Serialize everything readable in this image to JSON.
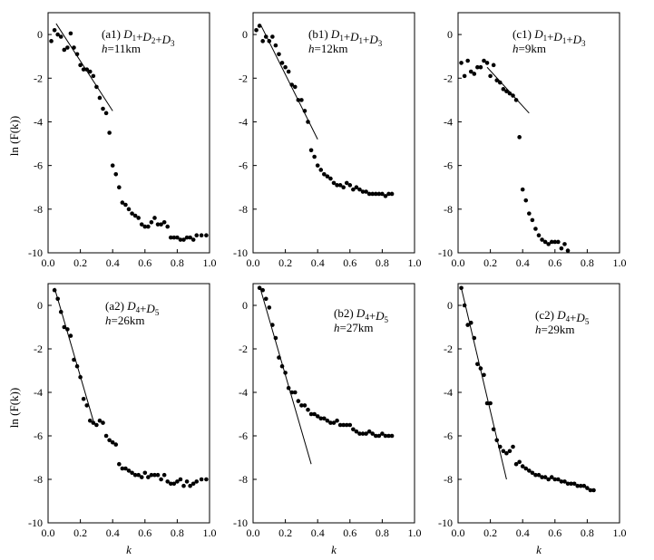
{
  "figure": {
    "ylabel": "ln (F(k))",
    "xlabel": "k"
  },
  "chart_data": [
    {
      "id": "a1",
      "type": "scatter",
      "label": "(a1) D1+D2+D3",
      "h": "h=11km",
      "xlim": [
        0,
        1
      ],
      "ylim": [
        -10,
        1
      ],
      "xticks": [
        "0.0",
        "0.2",
        "0.4",
        "0.6",
        "0.8",
        "1.0"
      ],
      "yticks": [
        "0",
        "-2",
        "-4",
        "-6",
        "-8",
        "-10"
      ],
      "show_xlabel": false,
      "points": [
        [
          0.02,
          -0.3
        ],
        [
          0.04,
          0.2
        ],
        [
          0.06,
          0.0
        ],
        [
          0.08,
          -0.1
        ],
        [
          0.1,
          -0.7
        ],
        [
          0.12,
          -0.6
        ],
        [
          0.14,
          0.05
        ],
        [
          0.16,
          -0.6
        ],
        [
          0.18,
          -0.9
        ],
        [
          0.2,
          -1.4
        ],
        [
          0.22,
          -1.6
        ],
        [
          0.24,
          -1.6
        ],
        [
          0.26,
          -1.7
        ],
        [
          0.28,
          -1.9
        ],
        [
          0.3,
          -2.4
        ],
        [
          0.32,
          -2.9
        ],
        [
          0.34,
          -3.4
        ],
        [
          0.36,
          -3.6
        ],
        [
          0.38,
          -4.5
        ],
        [
          0.4,
          -6.0
        ],
        [
          0.42,
          -6.4
        ],
        [
          0.44,
          -7.0
        ],
        [
          0.46,
          -7.7
        ],
        [
          0.48,
          -7.8
        ],
        [
          0.5,
          -8.0
        ],
        [
          0.52,
          -8.2
        ],
        [
          0.54,
          -8.3
        ],
        [
          0.56,
          -8.4
        ],
        [
          0.58,
          -8.7
        ],
        [
          0.6,
          -8.8
        ],
        [
          0.62,
          -8.8
        ],
        [
          0.64,
          -8.6
        ],
        [
          0.66,
          -8.4
        ],
        [
          0.68,
          -8.7
        ],
        [
          0.7,
          -8.7
        ],
        [
          0.72,
          -8.6
        ],
        [
          0.74,
          -8.8
        ],
        [
          0.76,
          -9.3
        ],
        [
          0.78,
          -9.3
        ],
        [
          0.8,
          -9.3
        ],
        [
          0.82,
          -9.4
        ],
        [
          0.84,
          -9.4
        ],
        [
          0.86,
          -9.3
        ],
        [
          0.88,
          -9.3
        ],
        [
          0.9,
          -9.4
        ],
        [
          0.92,
          -9.2
        ],
        [
          0.95,
          -9.2
        ],
        [
          0.98,
          -9.2
        ]
      ],
      "fit": [
        [
          0.05,
          0.5
        ],
        [
          0.4,
          -3.5
        ]
      ]
    },
    {
      "id": "b1",
      "type": "scatter",
      "label": "(b1) D1+D1+D3",
      "h": "h=12km",
      "xlim": [
        0,
        1
      ],
      "ylim": [
        -10,
        1
      ],
      "xticks": [
        "0.0",
        "0.2",
        "0.4",
        "0.6",
        "0.8",
        "1.0"
      ],
      "yticks": [
        "0",
        "-2",
        "-4",
        "-6",
        "-8",
        "-10"
      ],
      "show_xlabel": false,
      "points": [
        [
          0.02,
          0.2
        ],
        [
          0.04,
          0.4
        ],
        [
          0.06,
          -0.3
        ],
        [
          0.08,
          -0.1
        ],
        [
          0.1,
          -0.3
        ],
        [
          0.12,
          -0.1
        ],
        [
          0.14,
          -0.5
        ],
        [
          0.16,
          -0.9
        ],
        [
          0.18,
          -1.3
        ],
        [
          0.2,
          -1.5
        ],
        [
          0.22,
          -1.7
        ],
        [
          0.24,
          -2.3
        ],
        [
          0.26,
          -2.4
        ],
        [
          0.28,
          -3.0
        ],
        [
          0.3,
          -3.0
        ],
        [
          0.32,
          -3.5
        ],
        [
          0.34,
          -4.0
        ],
        [
          0.36,
          -5.3
        ],
        [
          0.38,
          -5.6
        ],
        [
          0.4,
          -6.0
        ],
        [
          0.42,
          -6.2
        ],
        [
          0.44,
          -6.4
        ],
        [
          0.46,
          -6.5
        ],
        [
          0.48,
          -6.6
        ],
        [
          0.5,
          -6.8
        ],
        [
          0.52,
          -6.9
        ],
        [
          0.54,
          -6.9
        ],
        [
          0.56,
          -7.0
        ],
        [
          0.58,
          -6.8
        ],
        [
          0.6,
          -6.9
        ],
        [
          0.62,
          -7.1
        ],
        [
          0.64,
          -7.0
        ],
        [
          0.66,
          -7.1
        ],
        [
          0.68,
          -7.2
        ],
        [
          0.7,
          -7.2
        ],
        [
          0.72,
          -7.3
        ],
        [
          0.74,
          -7.3
        ],
        [
          0.76,
          -7.3
        ],
        [
          0.78,
          -7.3
        ],
        [
          0.8,
          -7.3
        ],
        [
          0.82,
          -7.4
        ],
        [
          0.84,
          -7.3
        ],
        [
          0.86,
          -7.3
        ]
      ],
      "fit": [
        [
          0.05,
          0.4
        ],
        [
          0.4,
          -4.8
        ]
      ]
    },
    {
      "id": "c1",
      "type": "scatter",
      "label": "(c1) D1+D1+D3",
      "h": "h=9km",
      "xlim": [
        0,
        1
      ],
      "ylim": [
        -10,
        1
      ],
      "xticks": [
        "0.0",
        "0.2",
        "0.4",
        "0.6",
        "0.8",
        "1.0"
      ],
      "yticks": [
        "0",
        "-2",
        "-4",
        "-6",
        "-8",
        "-10"
      ],
      "show_xlabel": false,
      "points": [
        [
          0.02,
          -1.3
        ],
        [
          0.04,
          -1.9
        ],
        [
          0.06,
          -1.2
        ],
        [
          0.08,
          -1.7
        ],
        [
          0.1,
          -1.8
        ],
        [
          0.12,
          -1.5
        ],
        [
          0.14,
          -1.5
        ],
        [
          0.16,
          -1.2
        ],
        [
          0.18,
          -1.3
        ],
        [
          0.2,
          -1.9
        ],
        [
          0.22,
          -1.4
        ],
        [
          0.24,
          -2.1
        ],
        [
          0.26,
          -2.2
        ],
        [
          0.28,
          -2.5
        ],
        [
          0.3,
          -2.6
        ],
        [
          0.32,
          -2.7
        ],
        [
          0.34,
          -2.8
        ],
        [
          0.36,
          -3.0
        ],
        [
          0.38,
          -4.7
        ],
        [
          0.4,
          -7.1
        ],
        [
          0.42,
          -7.6
        ],
        [
          0.44,
          -8.2
        ],
        [
          0.46,
          -8.5
        ],
        [
          0.48,
          -8.9
        ],
        [
          0.5,
          -9.2
        ],
        [
          0.52,
          -9.4
        ],
        [
          0.54,
          -9.5
        ],
        [
          0.56,
          -9.6
        ],
        [
          0.58,
          -9.5
        ],
        [
          0.6,
          -9.5
        ],
        [
          0.62,
          -9.5
        ],
        [
          0.64,
          -9.8
        ],
        [
          0.66,
          -9.6
        ],
        [
          0.68,
          -9.9
        ]
      ],
      "fit": [
        [
          0.18,
          -1.5
        ],
        [
          0.44,
          -3.6
        ]
      ]
    },
    {
      "id": "a2",
      "type": "scatter",
      "label": "(a2) D4+D5",
      "h": "h=26km",
      "xlim": [
        0,
        1
      ],
      "ylim": [
        -10,
        1
      ],
      "xticks": [
        "0.0",
        "0.2",
        "0.4",
        "0.6",
        "0.8",
        "1.0"
      ],
      "yticks": [
        "0",
        "-2",
        "-4",
        "-6",
        "-8",
        "-10"
      ],
      "show_xlabel": true,
      "points": [
        [
          0.04,
          0.7
        ],
        [
          0.06,
          0.3
        ],
        [
          0.08,
          -0.3
        ],
        [
          0.1,
          -1.0
        ],
        [
          0.12,
          -1.1
        ],
        [
          0.14,
          -1.4
        ],
        [
          0.16,
          -2.5
        ],
        [
          0.18,
          -2.8
        ],
        [
          0.2,
          -3.3
        ],
        [
          0.22,
          -4.3
        ],
        [
          0.24,
          -4.6
        ],
        [
          0.26,
          -5.3
        ],
        [
          0.28,
          -5.4
        ],
        [
          0.3,
          -5.5
        ],
        [
          0.32,
          -5.3
        ],
        [
          0.34,
          -5.4
        ],
        [
          0.36,
          -6.0
        ],
        [
          0.38,
          -6.2
        ],
        [
          0.4,
          -6.3
        ],
        [
          0.42,
          -6.4
        ],
        [
          0.44,
          -7.3
        ],
        [
          0.46,
          -7.5
        ],
        [
          0.48,
          -7.5
        ],
        [
          0.5,
          -7.6
        ],
        [
          0.52,
          -7.7
        ],
        [
          0.54,
          -7.8
        ],
        [
          0.56,
          -7.8
        ],
        [
          0.58,
          -7.9
        ],
        [
          0.6,
          -7.7
        ],
        [
          0.62,
          -7.9
        ],
        [
          0.64,
          -7.8
        ],
        [
          0.66,
          -7.8
        ],
        [
          0.68,
          -7.8
        ],
        [
          0.7,
          -8.0
        ],
        [
          0.72,
          -7.8
        ],
        [
          0.74,
          -8.1
        ],
        [
          0.76,
          -8.2
        ],
        [
          0.78,
          -8.2
        ],
        [
          0.8,
          -8.1
        ],
        [
          0.82,
          -8.0
        ],
        [
          0.84,
          -8.3
        ],
        [
          0.86,
          -8.1
        ],
        [
          0.88,
          -8.3
        ],
        [
          0.9,
          -8.2
        ],
        [
          0.92,
          -8.1
        ],
        [
          0.95,
          -8.0
        ],
        [
          0.98,
          -8.0
        ]
      ],
      "fit": [
        [
          0.04,
          0.8
        ],
        [
          0.28,
          -5.3
        ]
      ]
    },
    {
      "id": "b2",
      "type": "scatter",
      "label": "(b2) D4+D5",
      "h": "h=27km",
      "xlim": [
        0,
        1
      ],
      "ylim": [
        -10,
        1
      ],
      "xticks": [
        "0.0",
        "0.2",
        "0.4",
        "0.6",
        "0.8",
        "1.0"
      ],
      "yticks": [
        "0",
        "-2",
        "-4",
        "-6",
        "-8",
        "-10"
      ],
      "show_xlabel": true,
      "points": [
        [
          0.04,
          0.8
        ],
        [
          0.06,
          0.7
        ],
        [
          0.08,
          0.3
        ],
        [
          0.1,
          -0.1
        ],
        [
          0.12,
          -0.9
        ],
        [
          0.14,
          -1.5
        ],
        [
          0.16,
          -2.4
        ],
        [
          0.18,
          -2.8
        ],
        [
          0.2,
          -3.1
        ],
        [
          0.22,
          -3.8
        ],
        [
          0.24,
          -4.0
        ],
        [
          0.26,
          -4.0
        ],
        [
          0.28,
          -4.4
        ],
        [
          0.3,
          -4.6
        ],
        [
          0.32,
          -4.6
        ],
        [
          0.34,
          -4.8
        ],
        [
          0.36,
          -5.0
        ],
        [
          0.38,
          -5.0
        ],
        [
          0.4,
          -5.1
        ],
        [
          0.42,
          -5.2
        ],
        [
          0.44,
          -5.2
        ],
        [
          0.46,
          -5.3
        ],
        [
          0.48,
          -5.4
        ],
        [
          0.5,
          -5.4
        ],
        [
          0.52,
          -5.3
        ],
        [
          0.54,
          -5.5
        ],
        [
          0.56,
          -5.5
        ],
        [
          0.58,
          -5.5
        ],
        [
          0.6,
          -5.5
        ],
        [
          0.62,
          -5.7
        ],
        [
          0.64,
          -5.8
        ],
        [
          0.66,
          -5.9
        ],
        [
          0.68,
          -5.9
        ],
        [
          0.7,
          -5.9
        ],
        [
          0.72,
          -5.8
        ],
        [
          0.74,
          -5.9
        ],
        [
          0.76,
          -6.0
        ],
        [
          0.78,
          -6.0
        ],
        [
          0.8,
          -5.9
        ],
        [
          0.82,
          -6.0
        ],
        [
          0.84,
          -6.0
        ],
        [
          0.86,
          -6.0
        ]
      ],
      "fit": [
        [
          0.04,
          0.9
        ],
        [
          0.36,
          -7.3
        ]
      ]
    },
    {
      "id": "c2",
      "type": "scatter",
      "label": "(c2) D4+D5",
      "h": "h=29km",
      "xlim": [
        0,
        1
      ],
      "ylim": [
        -10,
        1
      ],
      "xticks": [
        "0.0",
        "0.2",
        "0.4",
        "0.6",
        "0.8",
        "1.0"
      ],
      "yticks": [
        "0",
        "-2",
        "-4",
        "-6",
        "-8",
        "-10"
      ],
      "show_xlabel": true,
      "points": [
        [
          0.02,
          0.8
        ],
        [
          0.04,
          0.0
        ],
        [
          0.06,
          -0.9
        ],
        [
          0.08,
          -0.8
        ],
        [
          0.1,
          -1.5
        ],
        [
          0.12,
          -2.7
        ],
        [
          0.14,
          -2.9
        ],
        [
          0.16,
          -3.2
        ],
        [
          0.18,
          -4.5
        ],
        [
          0.2,
          -4.5
        ],
        [
          0.22,
          -5.7
        ],
        [
          0.24,
          -6.2
        ],
        [
          0.26,
          -6.5
        ],
        [
          0.28,
          -6.7
        ],
        [
          0.3,
          -6.8
        ],
        [
          0.32,
          -6.7
        ],
        [
          0.34,
          -6.5
        ],
        [
          0.36,
          -7.3
        ],
        [
          0.38,
          -7.2
        ],
        [
          0.4,
          -7.4
        ],
        [
          0.42,
          -7.5
        ],
        [
          0.44,
          -7.6
        ],
        [
          0.46,
          -7.7
        ],
        [
          0.48,
          -7.8
        ],
        [
          0.5,
          -7.8
        ],
        [
          0.52,
          -7.9
        ],
        [
          0.54,
          -7.9
        ],
        [
          0.56,
          -8.0
        ],
        [
          0.58,
          -7.9
        ],
        [
          0.6,
          -8.0
        ],
        [
          0.62,
          -8.0
        ],
        [
          0.64,
          -8.1
        ],
        [
          0.66,
          -8.1
        ],
        [
          0.68,
          -8.2
        ],
        [
          0.7,
          -8.2
        ],
        [
          0.72,
          -8.2
        ],
        [
          0.74,
          -8.3
        ],
        [
          0.76,
          -8.3
        ],
        [
          0.78,
          -8.3
        ],
        [
          0.8,
          -8.4
        ],
        [
          0.82,
          -8.5
        ],
        [
          0.84,
          -8.5
        ]
      ],
      "fit": [
        [
          0.02,
          0.8
        ],
        [
          0.3,
          -8.0
        ]
      ]
    }
  ]
}
